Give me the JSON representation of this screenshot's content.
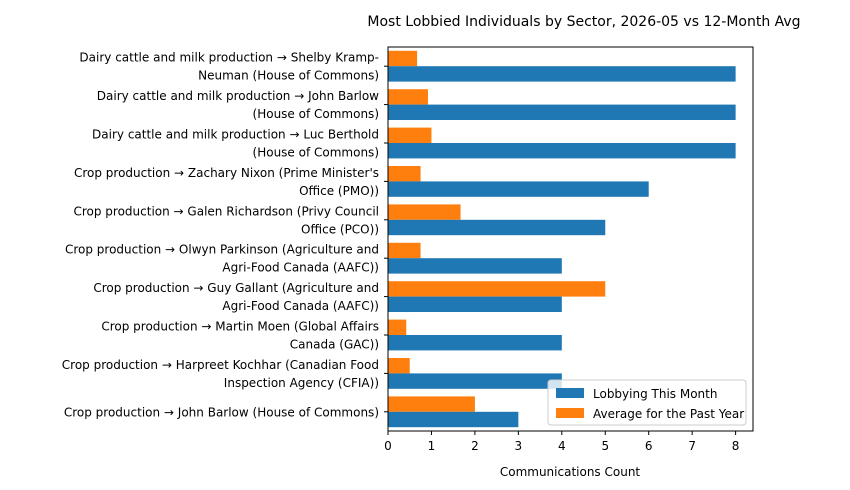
{
  "chart_data": {
    "type": "bar",
    "orientation": "horizontal",
    "title": "Most Lobbied Individuals by Sector, 2026-05 vs 12-Month Avg",
    "xlabel": "Communications Count",
    "ylabel": "",
    "xlim": [
      0,
      8.4
    ],
    "xticks": [
      0,
      1,
      2,
      3,
      4,
      5,
      6,
      7,
      8
    ],
    "grid": false,
    "legend_position": "lower right",
    "categories": [
      [
        "Dairy cattle and milk production → Shelby Kramp-",
        "Neuman (House of Commons)"
      ],
      [
        "Dairy cattle and milk production → John Barlow",
        "(House of Commons)"
      ],
      [
        "Dairy cattle and milk production → Luc Berthold",
        "(House of Commons)"
      ],
      [
        "Crop production → Zachary Nixon (Prime Minister's",
        "Office (PMO))"
      ],
      [
        "Crop production → Galen Richardson (Privy Council",
        "Office (PCO))"
      ],
      [
        "Crop production → Olwyn Parkinson (Agriculture and",
        "Agri-Food Canada (AAFC))"
      ],
      [
        "Crop production → Guy Gallant (Agriculture and",
        "Agri-Food Canada (AAFC))"
      ],
      [
        "Crop production → Martin Moen (Global Affairs",
        "Canada (GAC))"
      ],
      [
        "Crop production → Harpreet Kochhar (Canadian Food",
        "Inspection Agency (CFIA))"
      ],
      [
        "Crop production → John Barlow (House of Commons)"
      ]
    ],
    "series": [
      {
        "name": "Lobbying This Month",
        "color": "#1f77b4",
        "values": [
          8,
          8,
          8,
          6,
          5,
          4,
          4,
          4,
          4,
          3
        ]
      },
      {
        "name": "Average for the Past Year",
        "color": "#ff7f0e",
        "values": [
          0.67,
          0.92,
          1.0,
          0.75,
          1.67,
          0.75,
          5.0,
          0.42,
          0.5,
          2.0
        ]
      }
    ]
  }
}
